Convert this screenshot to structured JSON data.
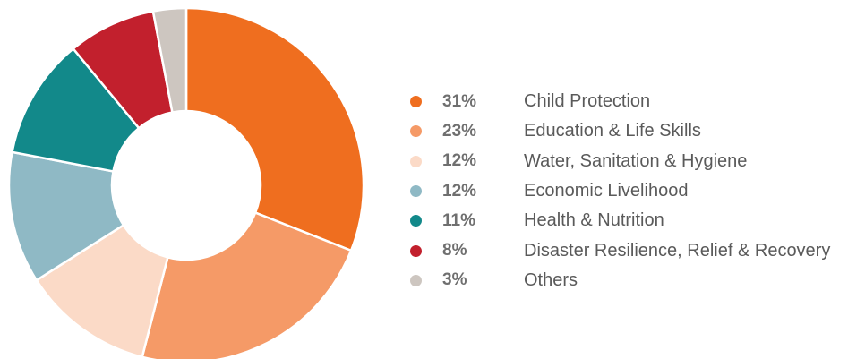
{
  "chart_data": {
    "type": "pie",
    "slices": [
      {
        "pct_label": "31%",
        "label": "Child Protection",
        "value": 31,
        "color": "#ef6e1f"
      },
      {
        "pct_label": "23%",
        "label": "Education & Life Skills",
        "value": 23,
        "color": "#f59a67"
      },
      {
        "pct_label": "12%",
        "label": "Water, Sanitation & Hygiene",
        "value": 12,
        "color": "#fbdac7"
      },
      {
        "pct_label": "12%",
        "label": "Economic Livelihood",
        "value": 12,
        "color": "#8fb9c5"
      },
      {
        "pct_label": "11%",
        "label": "Health & Nutrition",
        "value": 11,
        "color": "#12898a"
      },
      {
        "pct_label": "8%",
        "label": "Disaster Resilience, Relief & Recovery",
        "value": 8,
        "color": "#c2202d"
      },
      {
        "pct_label": "3%",
        "label": "Others",
        "value": 3,
        "color": "#cdc6c0"
      }
    ],
    "legend_placement": "right"
  }
}
